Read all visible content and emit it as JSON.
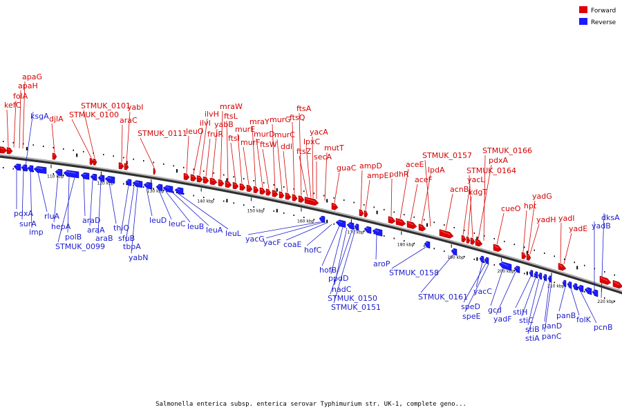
{
  "legend": {
    "forward_label": "Forward",
    "reverse_label": "Reverse",
    "forward_color": "#e00000",
    "reverse_color": "#1a1aff"
  },
  "caption": "Salmonella enterica subsp. enterica serovar Typhimurium str. UK-1, complete geno...",
  "axis": {
    "unit": "kbp",
    "ticks": [
      {
        "pos": 110,
        "label": "110 kbp"
      },
      {
        "pos": 120,
        "label": "120 kbp"
      },
      {
        "pos": 130,
        "label": "130 kbp"
      },
      {
        "pos": 140,
        "label": "140 kbp"
      },
      {
        "pos": 150,
        "label": "150 kbp"
      },
      {
        "pos": 160,
        "label": "160 kbp"
      },
      {
        "pos": 170,
        "label": "170 kbp"
      },
      {
        "pos": 180,
        "label": "180 kbp"
      },
      {
        "pos": 190,
        "label": "190 kbp"
      },
      {
        "pos": 200,
        "label": "200 kbp"
      },
      {
        "pos": 210,
        "label": "210 kbp"
      },
      {
        "pos": 220,
        "label": "220 kbp"
      }
    ]
  },
  "forward_genes": [
    "kefC",
    "folA",
    "apaH",
    "apaG",
    "djlA",
    "STMUK_0100",
    "STMUK_0101",
    "araC",
    "yabI",
    "STMUK_0111",
    "leuO",
    "ilvI",
    "ilvH",
    "fruR",
    "yabB",
    "mraW",
    "ftsL",
    "ftsI",
    "murE",
    "murF",
    "mraY",
    "murD",
    "ftsW",
    "murG",
    "murC",
    "ddl",
    "ftsQ",
    "ftsA",
    "ftsZ",
    "lpxC",
    "secA",
    "yacA",
    "mutT",
    "guaC",
    "ampD",
    "ampE",
    "pdhR",
    "aceE",
    "aceF",
    "lpdA",
    "STMUK_0157",
    "acnB",
    "yacL",
    "kdgT",
    "STMUK_0164",
    "pdxA",
    "STMUK_0166",
    "cueO",
    "hpt",
    "yadG",
    "yadH",
    "yadI",
    "yadE"
  ],
  "reverse_genes": [
    "ksgA",
    "pdxA",
    "surA",
    "imp",
    "rluA",
    "hepA",
    "polB",
    "STMUK_0099",
    "araD",
    "araA",
    "araB",
    "thiQ",
    "sfuB",
    "tbpA",
    "yabN",
    "leuD",
    "leuC",
    "leuB",
    "leuA",
    "leuL",
    "yacG",
    "yacF",
    "coaE",
    "hofC",
    "hofB",
    "ppdD",
    "nadC",
    "STMUK_0150",
    "STMUK_0151",
    "aroP",
    "STMUK_0158",
    "STMUK_0161",
    "yacC",
    "speD",
    "speE",
    "gcd",
    "yadF",
    "stiH",
    "stiC",
    "stiB",
    "stiA",
    "panD",
    "panC",
    "panB",
    "folK",
    "pcnB",
    "yadB",
    "dksA"
  ]
}
